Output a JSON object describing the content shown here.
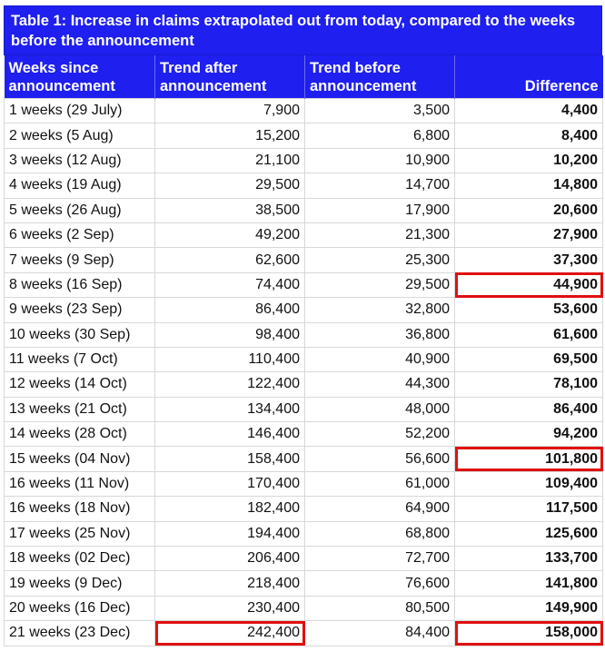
{
  "caption": "Table 1: Increase in claims extrapolated out from today, compared to the weeks before the announcement",
  "headers": {
    "weeks_line1": "Weeks since",
    "weeks_line2": "announcement",
    "after_line1": "Trend after",
    "after_line2": "announcement",
    "before_line1": "Trend before",
    "before_line2": "announcement",
    "difference": "Difference"
  },
  "colors": {
    "header_bg": "#1f1ff0",
    "highlight": "#e01010"
  },
  "rows": [
    {
      "week": "1 weeks (29 July)",
      "after": "7,900",
      "before": "3,500",
      "diff": "4,400"
    },
    {
      "week": "2 weeks (5 Aug)",
      "after": "15,200",
      "before": "6,800",
      "diff": "8,400"
    },
    {
      "week": "3 weeks (12 Aug)",
      "after": "21,100",
      "before": "10,900",
      "diff": "10,200"
    },
    {
      "week": "4 weeks (19 Aug)",
      "after": "29,500",
      "before": "14,700",
      "diff": "14,800"
    },
    {
      "week": "5 weeks (26 Aug)",
      "after": "38,500",
      "before": "17,900",
      "diff": "20,600"
    },
    {
      "week": "6 weeks (2 Sep)",
      "after": "49,200",
      "before": "21,300",
      "diff": "27,900"
    },
    {
      "week": "7 weeks (9 Sep)",
      "after": "62,600",
      "before": "25,300",
      "diff": "37,300"
    },
    {
      "week": "8 weeks (16 Sep)",
      "after": "74,400",
      "before": "29,500",
      "diff": "44,900"
    },
    {
      "week": "9 weeks (23 Sep)",
      "after": "86,400",
      "before": "32,800",
      "diff": "53,600"
    },
    {
      "week": "10 weeks (30 Sep)",
      "after": "98,400",
      "before": "36,800",
      "diff": "61,600"
    },
    {
      "week": "11 weeks (7 Oct)",
      "after": "110,400",
      "before": "40,900",
      "diff": "69,500"
    },
    {
      "week": "12 weeks (14 Oct)",
      "after": "122,400",
      "before": "44,300",
      "diff": "78,100"
    },
    {
      "week": "13 weeks (21 Oct)",
      "after": "134,400",
      "before": "48,000",
      "diff": "86,400"
    },
    {
      "week": "14 weeks (28 Oct)",
      "after": "146,400",
      "before": "52,200",
      "diff": "94,200"
    },
    {
      "week": "15 weeks (04 Nov)",
      "after": "158,400",
      "before": "56,600",
      "diff": "101,800"
    },
    {
      "week": "16 weeks (11 Nov)",
      "after": "170,400",
      "before": "61,000",
      "diff": "109,400"
    },
    {
      "week": "16 weeks (18 Nov)",
      "after": "182,400",
      "before": "64,900",
      "diff": "117,500"
    },
    {
      "week": "17 weeks (25 Nov)",
      "after": "194,400",
      "before": "68,800",
      "diff": "125,600"
    },
    {
      "week": "18 weeks (02 Dec)",
      "after": "206,400",
      "before": "72,700",
      "diff": "133,700"
    },
    {
      "week": "19 weeks (9 Dec)",
      "after": "218,400",
      "before": "76,600",
      "diff": "141,800"
    },
    {
      "week": "20 weeks (16 Dec)",
      "after": "230,400",
      "before": "80,500",
      "diff": "149,900"
    },
    {
      "week": "21 weeks (23 Dec)",
      "after": "242,400",
      "before": "84,400",
      "diff": "158,000"
    }
  ]
}
